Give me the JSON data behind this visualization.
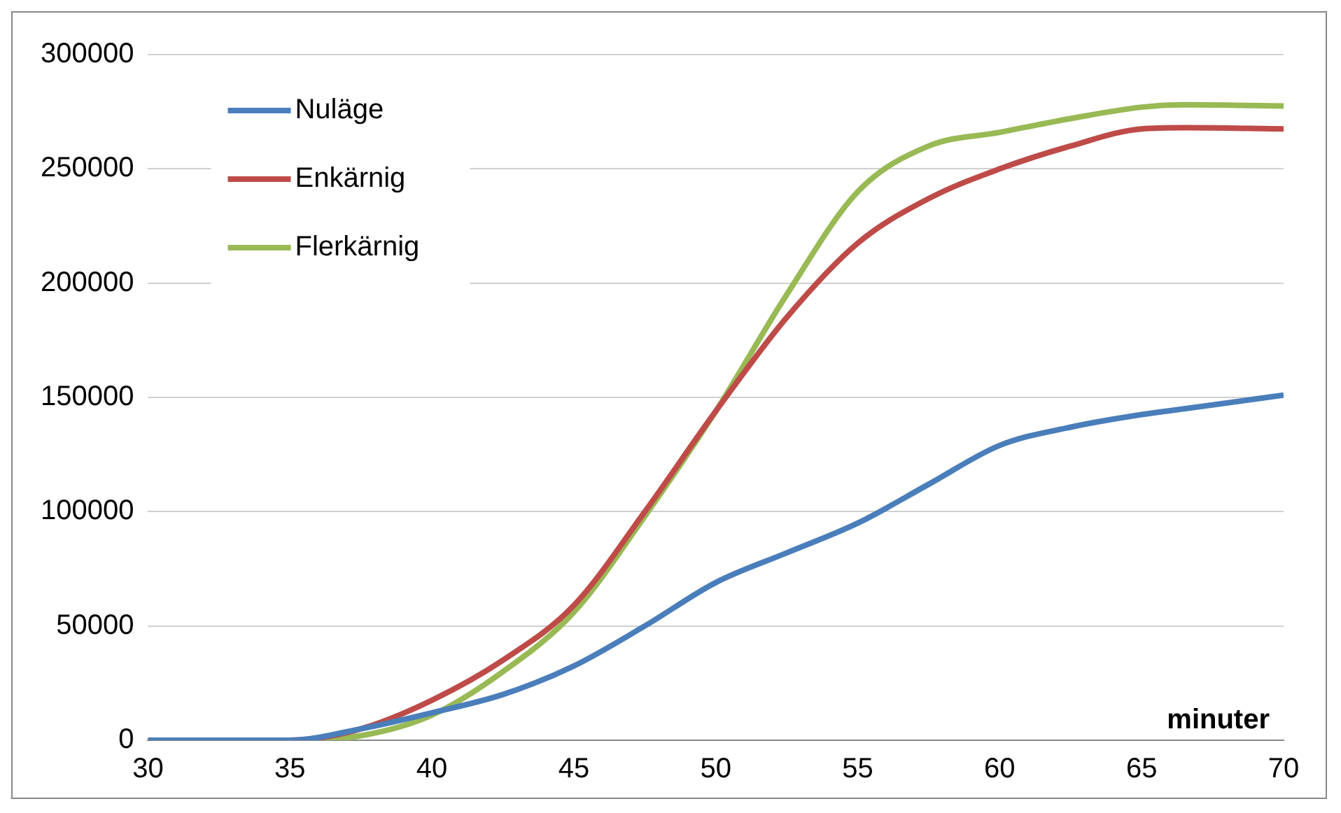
{
  "chart_data": {
    "type": "line",
    "xlabel": "minuter",
    "x": [
      30,
      35,
      37.5,
      40,
      42.5,
      45,
      47.5,
      50,
      52.5,
      55,
      57.5,
      60,
      62.5,
      65,
      66.5,
      70
    ],
    "series": [
      {
        "name": "Nuläge",
        "color": "#4a7ebb",
        "values": [
          0,
          0,
          5000,
          12000,
          20000,
          32500,
          50000,
          69000,
          82000,
          95000,
          112000,
          129000,
          137000,
          142500,
          145000,
          151000
        ]
      },
      {
        "name": "Enkärnig",
        "color": "#be4b48",
        "values": [
          0,
          0,
          5000,
          17500,
          35000,
          59000,
          100000,
          144000,
          185000,
          217500,
          237000,
          250000,
          260000,
          267500,
          268000,
          267500
        ]
      },
      {
        "name": "Flerkärnig",
        "color": "#98b954",
        "values": [
          0,
          0,
          2000,
          11000,
          30000,
          56000,
          98000,
          144000,
          195000,
          240000,
          260000,
          266000,
          272000,
          277000,
          278000,
          277500
        ]
      }
    ],
    "xlim": [
      30,
      70
    ],
    "xticks": [
      30,
      35,
      40,
      45,
      50,
      55,
      60,
      65,
      70
    ],
    "ylim": [
      0,
      300000
    ],
    "yticks": [
      0,
      50000,
      100000,
      150000,
      200000,
      250000,
      300000
    ],
    "grid": "y",
    "legend": "top left",
    "marker": "none",
    "line_style": "solid"
  }
}
